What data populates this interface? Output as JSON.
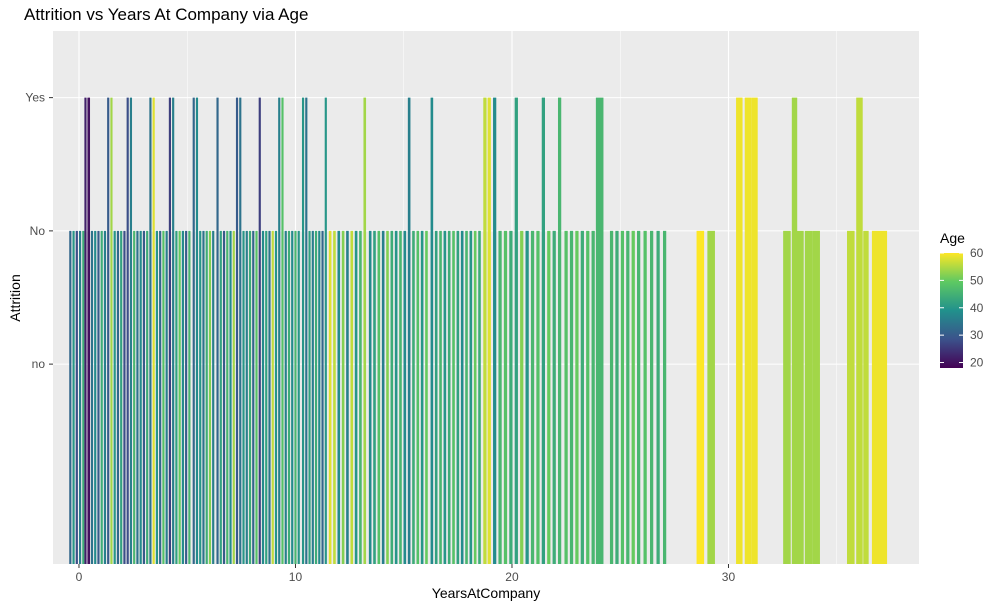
{
  "chart_data": {
    "type": "bar",
    "title": "Attrition vs Years At Company via Age",
    "xlabel": "YearsAtCompany",
    "ylabel": "Attrition",
    "xlim": [
      -1.2,
      38.8
    ],
    "x_ticks": [
      0,
      10,
      20,
      30
    ],
    "y_categories": [
      "no",
      "No",
      "Yes"
    ],
    "y_levels_shown": 4,
    "grid": true,
    "legend": {
      "title": "Age",
      "position": "right",
      "ticks": [
        20,
        30,
        40,
        50,
        60
      ],
      "range": [
        18,
        60
      ]
    },
    "bars": [
      {
        "x": -0.4,
        "y": "No",
        "age": 32,
        "w": 0.1
      },
      {
        "x": -0.25,
        "y": "No",
        "age": 40,
        "w": 0.1
      },
      {
        "x": -0.1,
        "y": "No",
        "age": 28,
        "w": 0.1
      },
      {
        "x": 0.05,
        "y": "No",
        "age": 36,
        "w": 0.1
      },
      {
        "x": 0.2,
        "y": "No",
        "age": 44,
        "w": 0.1
      },
      {
        "x": 0.3,
        "y": "Yes",
        "age": 22,
        "w": 0.1
      },
      {
        "x": 0.45,
        "y": "Yes",
        "age": 20,
        "w": 0.12
      },
      {
        "x": 0.6,
        "y": "No",
        "age": 34,
        "w": 0.1
      },
      {
        "x": 0.75,
        "y": "No",
        "age": 38,
        "w": 0.1
      },
      {
        "x": 0.9,
        "y": "No",
        "age": 30,
        "w": 0.1
      },
      {
        "x": 1.05,
        "y": "No",
        "age": 44,
        "w": 0.1
      },
      {
        "x": 1.2,
        "y": "No",
        "age": 36,
        "w": 0.1
      },
      {
        "x": 1.35,
        "y": "Yes",
        "age": 30,
        "w": 0.1
      },
      {
        "x": 1.5,
        "y": "Yes",
        "age": 54,
        "w": 0.1
      },
      {
        "x": 1.65,
        "y": "No",
        "age": 40,
        "w": 0.1
      },
      {
        "x": 1.8,
        "y": "No",
        "age": 32,
        "w": 0.1
      },
      {
        "x": 1.95,
        "y": "No",
        "age": 42,
        "w": 0.1
      },
      {
        "x": 2.1,
        "y": "No",
        "age": 28,
        "w": 0.1
      },
      {
        "x": 2.25,
        "y": "Yes",
        "age": 28,
        "w": 0.1
      },
      {
        "x": 2.4,
        "y": "Yes",
        "age": 36,
        "w": 0.1
      },
      {
        "x": 2.55,
        "y": "No",
        "age": 46,
        "w": 0.1
      },
      {
        "x": 2.7,
        "y": "No",
        "age": 34,
        "w": 0.1
      },
      {
        "x": 2.85,
        "y": "No",
        "age": 38,
        "w": 0.1
      },
      {
        "x": 3.0,
        "y": "No",
        "age": 30,
        "w": 0.1
      },
      {
        "x": 3.15,
        "y": "No",
        "age": 44,
        "w": 0.1
      },
      {
        "x": 3.3,
        "y": "Yes",
        "age": 34,
        "w": 0.1
      },
      {
        "x": 3.45,
        "y": "Yes",
        "age": 58,
        "w": 0.1
      },
      {
        "x": 3.6,
        "y": "No",
        "age": 40,
        "w": 0.1
      },
      {
        "x": 3.75,
        "y": "No",
        "age": 32,
        "w": 0.1
      },
      {
        "x": 3.9,
        "y": "No",
        "age": 48,
        "w": 0.1
      },
      {
        "x": 4.05,
        "y": "No",
        "age": 36,
        "w": 0.1
      },
      {
        "x": 4.2,
        "y": "Yes",
        "age": 26,
        "w": 0.1
      },
      {
        "x": 4.35,
        "y": "Yes",
        "age": 36,
        "w": 0.1
      },
      {
        "x": 4.5,
        "y": "No",
        "age": 42,
        "w": 0.1
      },
      {
        "x": 4.65,
        "y": "No",
        "age": 50,
        "w": 0.1
      },
      {
        "x": 4.8,
        "y": "No",
        "age": 38,
        "w": 0.1
      },
      {
        "x": 4.95,
        "y": "No",
        "age": 30,
        "w": 0.1
      },
      {
        "x": 5.1,
        "y": "No",
        "age": 46,
        "w": 0.1
      },
      {
        "x": 5.3,
        "y": "Yes",
        "age": 32,
        "w": 0.1
      },
      {
        "x": 5.45,
        "y": "Yes",
        "age": 38,
        "w": 0.1
      },
      {
        "x": 5.6,
        "y": "No",
        "age": 40,
        "w": 0.1
      },
      {
        "x": 5.75,
        "y": "No",
        "age": 34,
        "w": 0.1
      },
      {
        "x": 5.9,
        "y": "No",
        "age": 44,
        "w": 0.1
      },
      {
        "x": 6.05,
        "y": "No",
        "age": 52,
        "w": 0.1
      },
      {
        "x": 6.2,
        "y": "No",
        "age": 36,
        "w": 0.1
      },
      {
        "x": 6.4,
        "y": "Yes",
        "age": 32,
        "w": 0.1
      },
      {
        "x": 6.55,
        "y": "No",
        "age": 42,
        "w": 0.1
      },
      {
        "x": 6.7,
        "y": "No",
        "age": 30,
        "w": 0.1
      },
      {
        "x": 6.85,
        "y": "No",
        "age": 46,
        "w": 0.1
      },
      {
        "x": 7.0,
        "y": "No",
        "age": 38,
        "w": 0.1
      },
      {
        "x": 7.15,
        "y": "No",
        "age": 54,
        "w": 0.1
      },
      {
        "x": 7.3,
        "y": "Yes",
        "age": 30,
        "w": 0.1
      },
      {
        "x": 7.45,
        "y": "Yes",
        "age": 34,
        "w": 0.1
      },
      {
        "x": 7.6,
        "y": "No",
        "age": 40,
        "w": 0.1
      },
      {
        "x": 7.75,
        "y": "No",
        "age": 36,
        "w": 0.1
      },
      {
        "x": 7.9,
        "y": "No",
        "age": 44,
        "w": 0.1
      },
      {
        "x": 8.05,
        "y": "No",
        "age": 32,
        "w": 0.1
      },
      {
        "x": 8.2,
        "y": "No",
        "age": 48,
        "w": 0.1
      },
      {
        "x": 8.35,
        "y": "Yes",
        "age": 26,
        "w": 0.1
      },
      {
        "x": 8.5,
        "y": "No",
        "age": 38,
        "w": 0.1
      },
      {
        "x": 8.65,
        "y": "No",
        "age": 42,
        "w": 0.1
      },
      {
        "x": 8.8,
        "y": "No",
        "age": 34,
        "w": 0.1
      },
      {
        "x": 8.95,
        "y": "No",
        "age": 56,
        "w": 0.1
      },
      {
        "x": 9.1,
        "y": "No",
        "age": 40,
        "w": 0.1
      },
      {
        "x": 9.25,
        "y": "Yes",
        "age": 36,
        "w": 0.1
      },
      {
        "x": 9.4,
        "y": "Yes",
        "age": 48,
        "w": 0.1
      },
      {
        "x": 9.55,
        "y": "No",
        "age": 36,
        "w": 0.1
      },
      {
        "x": 9.7,
        "y": "No",
        "age": 44,
        "w": 0.1
      },
      {
        "x": 9.85,
        "y": "No",
        "age": 38,
        "w": 0.1
      },
      {
        "x": 10.0,
        "y": "No",
        "age": 46,
        "w": 0.1
      },
      {
        "x": 10.15,
        "y": "No",
        "age": 40,
        "w": 0.1
      },
      {
        "x": 10.35,
        "y": "Yes",
        "age": 40,
        "w": 0.1
      },
      {
        "x": 10.5,
        "y": "Yes",
        "age": 34,
        "w": 0.1
      },
      {
        "x": 10.65,
        "y": "No",
        "age": 42,
        "w": 0.1
      },
      {
        "x": 10.8,
        "y": "No",
        "age": 36,
        "w": 0.1
      },
      {
        "x": 10.95,
        "y": "No",
        "age": 44,
        "w": 0.1
      },
      {
        "x": 11.1,
        "y": "No",
        "age": 38,
        "w": 0.1
      },
      {
        "x": 11.25,
        "y": "No",
        "age": 32,
        "w": 0.1
      },
      {
        "x": 11.4,
        "y": "Yes",
        "age": 40,
        "w": 0.1
      },
      {
        "x": 11.6,
        "y": "No",
        "age": 58,
        "w": 0.12
      },
      {
        "x": 11.8,
        "y": "No",
        "age": 56,
        "w": 0.12
      },
      {
        "x": 12.0,
        "y": "No",
        "age": 38,
        "w": 0.12
      },
      {
        "x": 12.2,
        "y": "No",
        "age": 52,
        "w": 0.12
      },
      {
        "x": 12.4,
        "y": "No",
        "age": 36,
        "w": 0.12
      },
      {
        "x": 12.6,
        "y": "No",
        "age": 56,
        "w": 0.12
      },
      {
        "x": 12.8,
        "y": "No",
        "age": 40,
        "w": 0.12
      },
      {
        "x": 13.0,
        "y": "No",
        "age": 46,
        "w": 0.12
      },
      {
        "x": 13.2,
        "y": "Yes",
        "age": 54,
        "w": 0.12
      },
      {
        "x": 13.45,
        "y": "No",
        "age": 38,
        "w": 0.12
      },
      {
        "x": 13.65,
        "y": "No",
        "age": 42,
        "w": 0.12
      },
      {
        "x": 13.85,
        "y": "No",
        "age": 48,
        "w": 0.12
      },
      {
        "x": 14.05,
        "y": "No",
        "age": 36,
        "w": 0.12
      },
      {
        "x": 14.25,
        "y": "No",
        "age": 52,
        "w": 0.12
      },
      {
        "x": 14.45,
        "y": "No",
        "age": 44,
        "w": 0.12
      },
      {
        "x": 14.65,
        "y": "No",
        "age": 40,
        "w": 0.12
      },
      {
        "x": 14.85,
        "y": "No",
        "age": 46,
        "w": 0.12
      },
      {
        "x": 15.05,
        "y": "No",
        "age": 38,
        "w": 0.12
      },
      {
        "x": 15.25,
        "y": "Yes",
        "age": 36,
        "w": 0.12
      },
      {
        "x": 15.45,
        "y": "No",
        "age": 44,
        "w": 0.12
      },
      {
        "x": 15.65,
        "y": "No",
        "age": 48,
        "w": 0.12
      },
      {
        "x": 15.85,
        "y": "No",
        "age": 40,
        "w": 0.12
      },
      {
        "x": 16.05,
        "y": "No",
        "age": 50,
        "w": 0.12
      },
      {
        "x": 16.3,
        "y": "Yes",
        "age": 38,
        "w": 0.12
      },
      {
        "x": 16.5,
        "y": "No",
        "age": 42,
        "w": 0.12
      },
      {
        "x": 16.7,
        "y": "No",
        "age": 46,
        "w": 0.12
      },
      {
        "x": 16.9,
        "y": "No",
        "age": 40,
        "w": 0.12
      },
      {
        "x": 17.1,
        "y": "No",
        "age": 44,
        "w": 0.12
      },
      {
        "x": 17.3,
        "y": "No",
        "age": 48,
        "w": 0.12
      },
      {
        "x": 17.5,
        "y": "No",
        "age": 42,
        "w": 0.12
      },
      {
        "x": 17.7,
        "y": "No",
        "age": 38,
        "w": 0.12
      },
      {
        "x": 17.9,
        "y": "No",
        "age": 46,
        "w": 0.12
      },
      {
        "x": 18.1,
        "y": "No",
        "age": 40,
        "w": 0.12
      },
      {
        "x": 18.3,
        "y": "No",
        "age": 50,
        "w": 0.12
      },
      {
        "x": 18.5,
        "y": "No",
        "age": 44,
        "w": 0.12
      },
      {
        "x": 18.75,
        "y": "Yes",
        "age": 56,
        "w": 0.15
      },
      {
        "x": 18.95,
        "y": "Yes",
        "age": 58,
        "w": 0.15
      },
      {
        "x": 19.2,
        "y": "Yes",
        "age": 38,
        "w": 0.15
      },
      {
        "x": 19.45,
        "y": "No",
        "age": 46,
        "w": 0.15
      },
      {
        "x": 19.7,
        "y": "No",
        "age": 48,
        "w": 0.15
      },
      {
        "x": 19.95,
        "y": "No",
        "age": 44,
        "w": 0.15
      },
      {
        "x": 20.2,
        "y": "Yes",
        "age": 42,
        "w": 0.15
      },
      {
        "x": 20.45,
        "y": "No",
        "age": 52,
        "w": 0.15
      },
      {
        "x": 20.7,
        "y": "No",
        "age": 40,
        "w": 0.15
      },
      {
        "x": 20.95,
        "y": "No",
        "age": 46,
        "w": 0.15
      },
      {
        "x": 21.2,
        "y": "No",
        "age": 48,
        "w": 0.15
      },
      {
        "x": 21.45,
        "y": "Yes",
        "age": 42,
        "w": 0.15
      },
      {
        "x": 21.7,
        "y": "No",
        "age": 50,
        "w": 0.15
      },
      {
        "x": 21.95,
        "y": "No",
        "age": 44,
        "w": 0.15
      },
      {
        "x": 22.2,
        "y": "Yes",
        "age": 46,
        "w": 0.15
      },
      {
        "x": 22.5,
        "y": "No",
        "age": 48,
        "w": 0.15
      },
      {
        "x": 22.75,
        "y": "No",
        "age": 46,
        "w": 0.15
      },
      {
        "x": 23.0,
        "y": "No",
        "age": 50,
        "w": 0.15
      },
      {
        "x": 23.25,
        "y": "No",
        "age": 44,
        "w": 0.15
      },
      {
        "x": 23.5,
        "y": "No",
        "age": 48,
        "w": 0.15
      },
      {
        "x": 23.75,
        "y": "No",
        "age": 46,
        "w": 0.15
      },
      {
        "x": 24.05,
        "y": "Yes",
        "age": 46,
        "w": 0.35
      },
      {
        "x": 24.6,
        "y": "No",
        "age": 46,
        "w": 0.15
      },
      {
        "x": 24.85,
        "y": "No",
        "age": 44,
        "w": 0.15
      },
      {
        "x": 25.1,
        "y": "No",
        "age": 48,
        "w": 0.15
      },
      {
        "x": 25.35,
        "y": "No",
        "age": 46,
        "w": 0.15
      },
      {
        "x": 25.6,
        "y": "No",
        "age": 50,
        "w": 0.15
      },
      {
        "x": 25.85,
        "y": "No",
        "age": 46,
        "w": 0.15
      },
      {
        "x": 26.15,
        "y": "No",
        "age": 48,
        "w": 0.15
      },
      {
        "x": 26.45,
        "y": "No",
        "age": 46,
        "w": 0.15
      },
      {
        "x": 26.75,
        "y": "No",
        "age": 44,
        "w": 0.15
      },
      {
        "x": 27.05,
        "y": "No",
        "age": 46,
        "w": 0.15
      },
      {
        "x": 28.7,
        "y": "No",
        "age": 60,
        "w": 0.35
      },
      {
        "x": 29.2,
        "y": "No",
        "age": 54,
        "w": 0.35
      },
      {
        "x": 30.5,
        "y": "Yes",
        "age": 59,
        "w": 0.3
      },
      {
        "x": 30.9,
        "y": "Yes",
        "age": 59,
        "w": 0.3
      },
      {
        "x": 31.2,
        "y": "Yes",
        "age": 59,
        "w": 0.3
      },
      {
        "x": 32.7,
        "y": "No",
        "age": 54,
        "w": 0.35
      },
      {
        "x": 33.05,
        "y": "Yes",
        "age": 54,
        "w": 0.25
      },
      {
        "x": 33.3,
        "y": "No",
        "age": 54,
        "w": 0.35
      },
      {
        "x": 33.7,
        "y": "No",
        "age": 54,
        "w": 0.35
      },
      {
        "x": 34.05,
        "y": "No",
        "age": 54,
        "w": 0.35
      },
      {
        "x": 35.65,
        "y": "No",
        "age": 56,
        "w": 0.35
      },
      {
        "x": 36.05,
        "y": "Yes",
        "age": 56,
        "w": 0.3
      },
      {
        "x": 36.35,
        "y": "No",
        "age": 56,
        "w": 0.25
      },
      {
        "x": 36.8,
        "y": "No",
        "age": 59,
        "w": 0.35
      },
      {
        "x": 37.15,
        "y": "No",
        "age": 59,
        "w": 0.35
      }
    ]
  }
}
